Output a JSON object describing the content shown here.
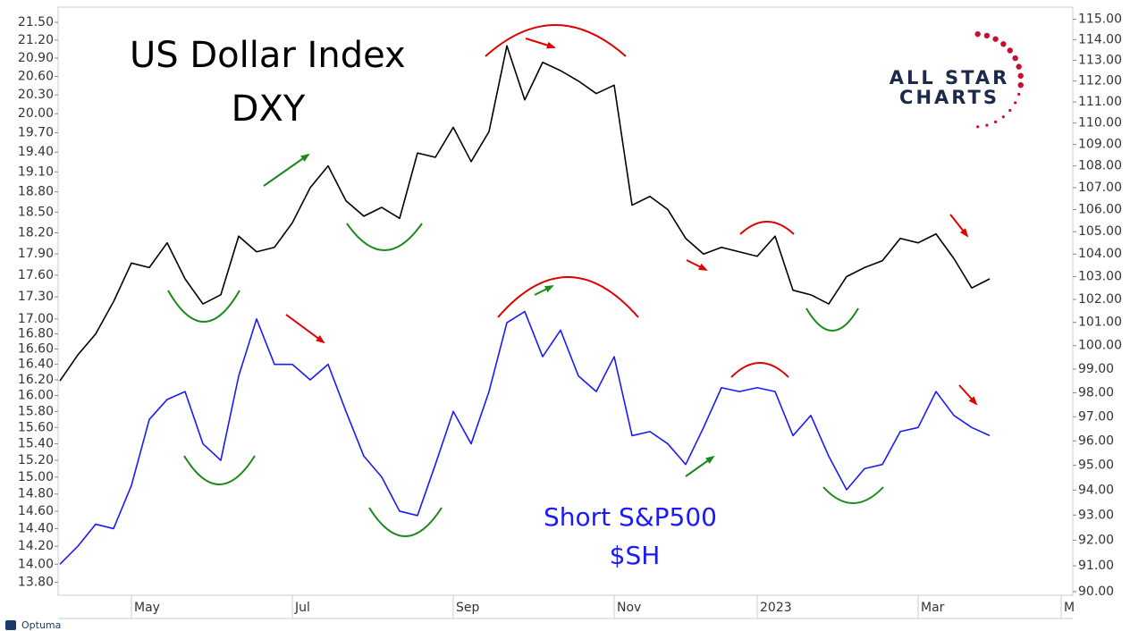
{
  "chart_data": {
    "type": "line",
    "annotations": [
      "US Dollar Index",
      "Short S&P500",
      "ALL STAR",
      "CHARTS",
      "Optuma"
    ],
    "categories": [
      null,
      null,
      null,
      null,
      "May",
      null,
      null,
      null,
      null,
      null,
      null,
      null,
      null,
      "Jul",
      null,
      null,
      null,
      null,
      null,
      null,
      null,
      null,
      "Sep",
      null,
      null,
      null,
      null,
      null,
      null,
      null,
      null,
      "Nov",
      null,
      null,
      null,
      null,
      null,
      null,
      null,
      "2023",
      null,
      null,
      null,
      null,
      null,
      null,
      null,
      null,
      "Mar",
      null,
      null,
      null,
      null,
      null,
      null,
      null,
      "M"
    ],
    "series": [
      {
        "name": "DXY",
        "color": "#000000",
        "axis": "y2",
        "values": [
          98.5,
          99.6,
          100.5,
          101.9,
          103.6,
          103.4,
          104.5,
          102.9,
          101.8,
          102.2,
          104.8,
          104.1,
          104.3,
          105.4,
          107.0,
          108.0,
          106.4,
          105.7,
          106.1,
          105.6,
          108.6,
          108.4,
          109.8,
          108.2,
          109.6,
          113.7,
          111.1,
          112.9,
          112.5,
          112.0,
          111.4,
          111.8,
          106.2,
          106.6,
          106.0,
          104.7,
          104.0,
          104.3,
          104.1,
          103.9,
          104.8,
          102.4,
          102.2,
          101.8,
          103.0,
          103.4,
          103.7,
          104.7,
          104.5,
          104.9,
          103.8,
          102.5,
          102.9,
          null,
          null,
          null,
          null
        ]
      },
      {
        "name": "$SH",
        "color": "#1a1aff",
        "axis": "y",
        "values": [
          14.0,
          14.2,
          14.45,
          14.4,
          14.9,
          15.7,
          15.95,
          16.05,
          15.4,
          15.2,
          16.25,
          17.0,
          16.4,
          16.4,
          16.2,
          16.4,
          15.8,
          15.25,
          15.0,
          14.6,
          14.55,
          15.15,
          15.8,
          15.4,
          16.05,
          16.95,
          17.1,
          16.5,
          16.85,
          16.25,
          16.05,
          16.5,
          15.5,
          15.55,
          15.4,
          15.15,
          15.6,
          16.1,
          16.05,
          16.1,
          16.05,
          15.5,
          15.75,
          15.25,
          14.85,
          15.1,
          15.15,
          15.55,
          15.6,
          16.05,
          15.75,
          15.6,
          15.5,
          null,
          null,
          null,
          null
        ]
      }
    ],
    "log_scale": true,
    "ylim": [
      13.66,
      21.76
    ],
    "yticks": [
      {
        "value": 13.8,
        "label": "13.80"
      },
      {
        "value": 14.0,
        "label": "14.00"
      },
      {
        "value": 14.2,
        "label": "14.20"
      },
      {
        "value": 14.4,
        "label": "14.40"
      },
      {
        "value": 14.6,
        "label": "14.60"
      },
      {
        "value": 14.8,
        "label": "14.80"
      },
      {
        "value": 15.0,
        "label": "15.00"
      },
      {
        "value": 15.2,
        "label": "15.20"
      },
      {
        "value": 15.4,
        "label": "15.40"
      },
      {
        "value": 15.6,
        "label": "15.60"
      },
      {
        "value": 15.8,
        "label": "15.80"
      },
      {
        "value": 16.0,
        "label": "16.00"
      },
      {
        "value": 16.2,
        "label": "16.20"
      },
      {
        "value": 16.4,
        "label": "16.40"
      },
      {
        "value": 16.6,
        "label": "16.60"
      },
      {
        "value": 16.8,
        "label": "16.80"
      },
      {
        "value": 17.0,
        "label": "17.00"
      },
      {
        "value": 17.3,
        "label": "17.30"
      },
      {
        "value": 17.6,
        "label": "17.60"
      },
      {
        "value": 17.9,
        "label": "17.90"
      },
      {
        "value": 18.2,
        "label": "18.20"
      },
      {
        "value": 18.5,
        "label": "18.50"
      },
      {
        "value": 18.8,
        "label": "18.80"
      },
      {
        "value": 19.1,
        "label": "19.10"
      },
      {
        "value": 19.4,
        "label": "19.40"
      },
      {
        "value": 19.7,
        "label": "19.70"
      },
      {
        "value": 20.0,
        "label": "20.00"
      },
      {
        "value": 20.3,
        "label": "20.30"
      },
      {
        "value": 20.6,
        "label": "20.60"
      },
      {
        "value": 20.9,
        "label": "20.90"
      },
      {
        "value": 21.2,
        "label": "21.20"
      },
      {
        "value": 21.5,
        "label": "21.50"
      }
    ],
    "y2lim": [
      89.86,
      115.6
    ],
    "y2ticks": [
      {
        "value": 90,
        "label": "90.00"
      },
      {
        "value": 91,
        "label": "91.00"
      },
      {
        "value": 92,
        "label": "92.00"
      },
      {
        "value": 93,
        "label": "93.00"
      },
      {
        "value": 94,
        "label": "94.00"
      },
      {
        "value": 95,
        "label": "95.00"
      },
      {
        "value": 96,
        "label": "96.00"
      },
      {
        "value": 97,
        "label": "97.00"
      },
      {
        "value": 98,
        "label": "98.00"
      },
      {
        "value": 99,
        "label": "99.00"
      },
      {
        "value": 100,
        "label": "100.00"
      },
      {
        "value": 101,
        "label": "101.00"
      },
      {
        "value": 102,
        "label": "102.00"
      },
      {
        "value": 103,
        "label": "103.00"
      },
      {
        "value": 104,
        "label": "104.00"
      },
      {
        "value": 105,
        "label": "105.00"
      },
      {
        "value": 106,
        "label": "106.00"
      },
      {
        "value": 107,
        "label": "107.00"
      },
      {
        "value": 108,
        "label": "108.00"
      },
      {
        "value": 109,
        "label": "109.00"
      },
      {
        "value": 110,
        "label": "110.00"
      },
      {
        "value": 111,
        "label": "111.00"
      },
      {
        "value": 112,
        "label": "112.00"
      },
      {
        "value": 113,
        "label": "113.00"
      },
      {
        "value": 114,
        "label": "114.00"
      },
      {
        "value": 115,
        "label": "115.00"
      }
    ],
    "grid": false
  }
}
